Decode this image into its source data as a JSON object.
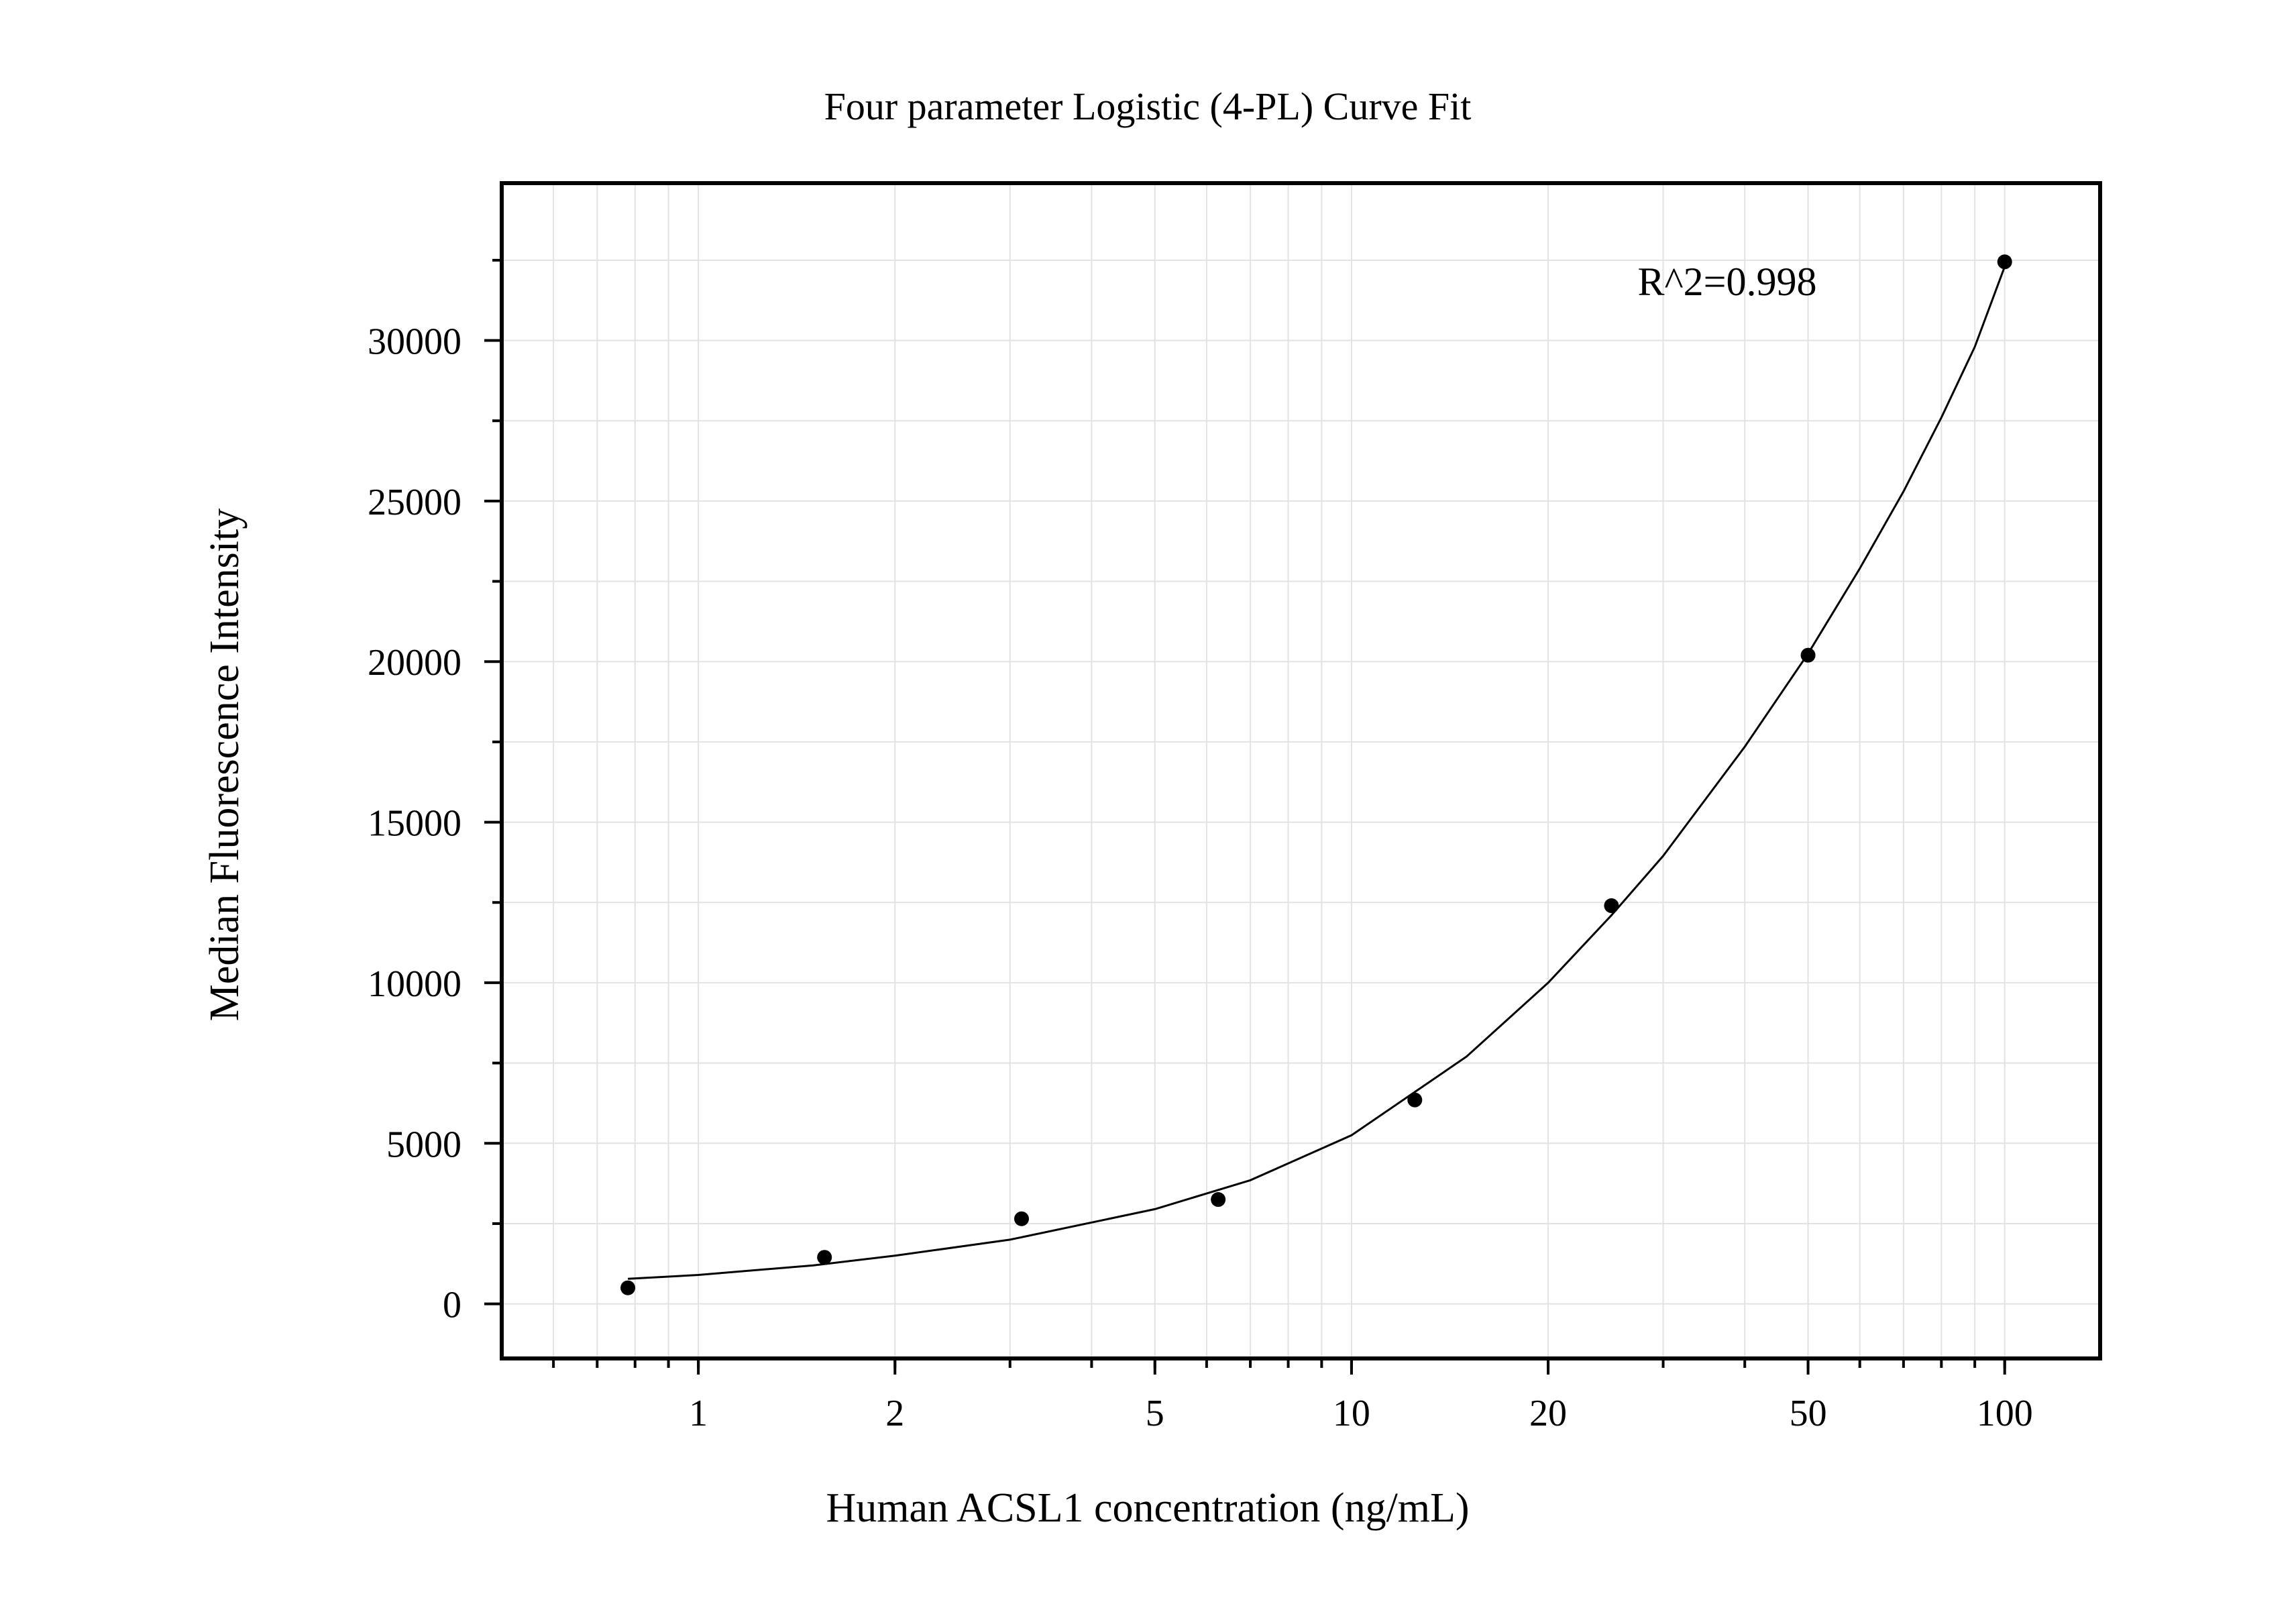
{
  "chart_data": {
    "type": "scatter",
    "title": "Four parameter Logistic (4-PL) Curve Fit",
    "xlabel": "Human ACSL1 concentration (ng/mL)",
    "ylabel": "Median Fluorescence Intensity",
    "x_scale": "log",
    "xlim": [
      0.5,
      140
    ],
    "ylim": [
      -1700,
      34900
    ],
    "x_ticks": [
      1,
      2,
      5,
      10,
      20,
      50,
      100
    ],
    "x_tick_labels": [
      "1",
      "2",
      "5",
      "10",
      "20",
      "50",
      "100"
    ],
    "y_ticks": [
      0,
      5000,
      10000,
      15000,
      20000,
      25000,
      30000
    ],
    "y_tick_labels": [
      "0",
      "5000",
      "10000",
      "15000",
      "20000",
      "25000",
      "30000"
    ],
    "grid": true,
    "annotations": [
      "R^2=0.998"
    ],
    "points": {
      "x": [
        0.78,
        1.56,
        3.125,
        6.25,
        12.5,
        25,
        50,
        100
      ],
      "y": [
        500,
        1450,
        2650,
        3250,
        6350,
        12400,
        20200,
        32450
      ]
    },
    "fit_curve": {
      "x": [
        0.78,
        1,
        1.5,
        2,
        3,
        5,
        7,
        10,
        15,
        20,
        25,
        30,
        40,
        50,
        60,
        70,
        80,
        90,
        100
      ],
      "y": [
        780,
        900,
        1200,
        1500,
        2000,
        2950,
        3850,
        5250,
        7700,
        10000,
        12100,
        13950,
        17350,
        20250,
        22900,
        25300,
        27600,
        29800,
        32300
      ]
    }
  }
}
